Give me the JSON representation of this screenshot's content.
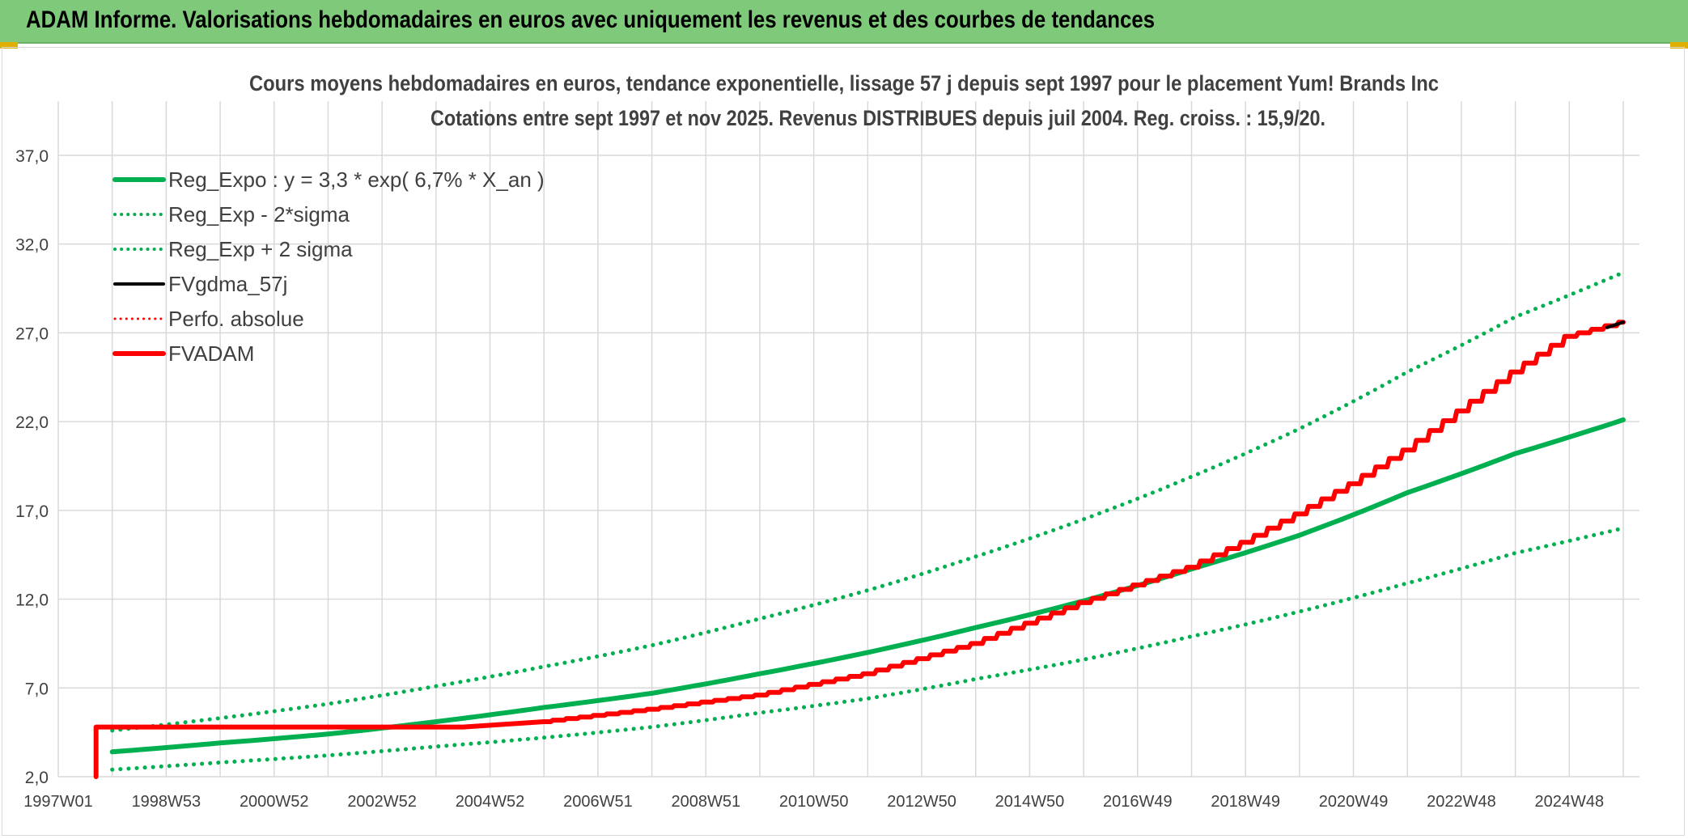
{
  "header": {
    "title": "ADAM Informe. Valorisations hebdomadaires en euros avec uniquement les revenus et des courbes de tendances"
  },
  "colors": {
    "banner": "#7ec97a",
    "green": "#00b050",
    "red": "#ff0000",
    "black": "#000000",
    "grid": "#d9d9d9",
    "text": "#404040"
  },
  "chart_data": {
    "type": "line",
    "title": "Cours moyens hebdomadaires en euros, tendance exponentielle, lissage 57 j depuis sept 1997 pour le placement Yum! Brands Inc",
    "subtitle": "Cotations entre sept 1997 et nov 2025. Revenus DISTRIBUES depuis juil 2004. Reg. croiss. : 15,9/20.",
    "xlabel": "",
    "ylabel": "",
    "x_range": [
      1997.0,
      2026.3
    ],
    "ylim": [
      2.0,
      38.0
    ],
    "y_ticks": [
      "37,0",
      "32,0",
      "27,0",
      "22,0",
      "17,0",
      "12,0",
      "7,0",
      "2,0"
    ],
    "y_tick_values": [
      37,
      32,
      27,
      22,
      17,
      12,
      7,
      2
    ],
    "x_tick_labels": [
      "1997W01",
      "1998W53",
      "2000W52",
      "2002W52",
      "2004W52",
      "2006W51",
      "2008W51",
      "2010W50",
      "2012W50",
      "2014W50",
      "2016W49",
      "2018W49",
      "2020W49",
      "2022W48",
      "2024W48"
    ],
    "legend": [
      {
        "name": "Reg_Expo : y = 3,3 * exp( 6,7% *  X_an )",
        "color": "#00b050",
        "style": "solid",
        "width": 6
      },
      {
        "name": "Reg_Exp - 2*sigma",
        "color": "#00b050",
        "style": "dotted",
        "width": 4
      },
      {
        "name": "Reg_Exp + 2 sigma",
        "color": "#00b050",
        "style": "dotted",
        "width": 4
      },
      {
        "name": "FVgdma_57j",
        "color": "#000000",
        "style": "solid",
        "width": 4
      },
      {
        "name": "Perfo. absolue",
        "color": "#ff0000",
        "style": "dotted",
        "width": 3
      },
      {
        "name": "FVADAM",
        "color": "#ff0000",
        "style": "solid",
        "width": 6
      }
    ],
    "legend_position": "top-left",
    "series": [
      {
        "name": "Reg_Expo",
        "x": [
          1998.0,
          2000.0,
          2002.0,
          2004.0,
          2006.0,
          2008.0,
          2010.0,
          2012.0,
          2014.0,
          2016.0,
          2018.0,
          2020.0,
          2022.0,
          2024.0,
          2026.0
        ],
        "y": [
          3.4,
          3.9,
          4.4,
          5.1,
          5.9,
          6.7,
          7.8,
          9.0,
          10.4,
          11.9,
          13.7,
          15.6,
          18.0,
          20.2,
          22.1
        ]
      },
      {
        "name": "Reg_Exp - 2*sigma",
        "x": [
          1998.0,
          2000.0,
          2002.0,
          2004.0,
          2006.0,
          2008.0,
          2010.0,
          2012.0,
          2014.0,
          2016.0,
          2018.0,
          2020.0,
          2022.0,
          2024.0,
          2026.0
        ],
        "y": [
          2.4,
          2.8,
          3.2,
          3.7,
          4.2,
          4.8,
          5.6,
          6.4,
          7.5,
          8.6,
          9.9,
          11.3,
          12.9,
          14.6,
          16.0
        ]
      },
      {
        "name": "Reg_Exp + 2 sigma",
        "x": [
          1998.0,
          2000.0,
          2002.0,
          2004.0,
          2006.0,
          2008.0,
          2010.0,
          2012.0,
          2014.0,
          2016.0,
          2018.0,
          2020.0,
          2022.0,
          2024.0,
          2026.0
        ],
        "y": [
          4.6,
          5.3,
          6.1,
          7.1,
          8.2,
          9.4,
          10.9,
          12.5,
          14.4,
          16.5,
          18.9,
          21.6,
          24.8,
          27.9,
          30.4
        ]
      },
      {
        "name": "FVADAM",
        "x": [
          1997.7,
          1997.7,
          2004.5,
          2006.0,
          2008.0,
          2010.0,
          2012.0,
          2014.0,
          2016.0,
          2017.0,
          2018.0,
          2019.0,
          2020.0,
          2021.0,
          2022.0,
          2023.0,
          2024.0,
          2025.0,
          2026.0
        ],
        "y": [
          2.0,
          4.8,
          4.8,
          5.1,
          5.8,
          6.6,
          7.8,
          9.5,
          11.8,
          12.8,
          13.8,
          15.2,
          16.8,
          18.5,
          20.4,
          22.6,
          24.8,
          26.8,
          27.6
        ]
      },
      {
        "name": "FVgdma_57j",
        "x": [
          2025.7,
          2026.0
        ],
        "y": [
          27.3,
          27.6
        ]
      }
    ]
  }
}
